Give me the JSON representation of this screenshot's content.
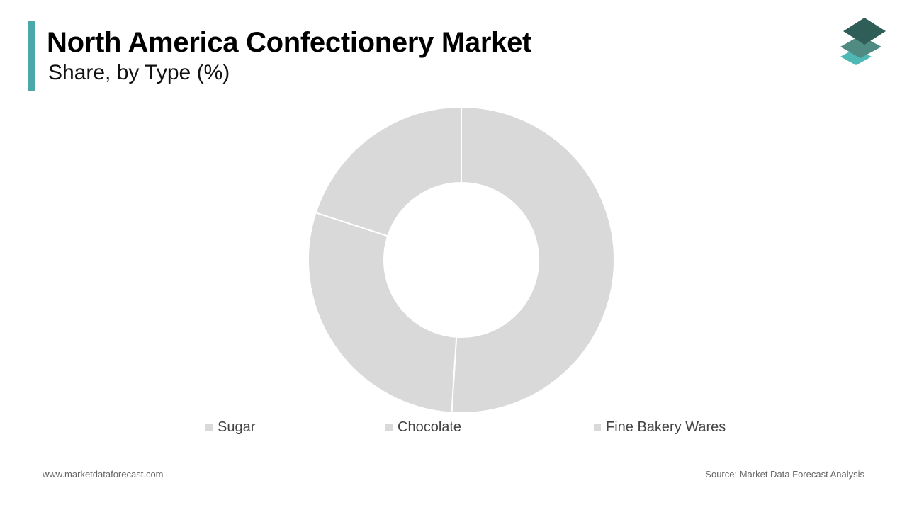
{
  "header": {
    "title": "North America Confectionery Market",
    "subtitle": "Share, by Type (%)"
  },
  "colors": {
    "accent": "#4aa8a8",
    "slice": "#d9d9d9",
    "separator": "#ffffff",
    "logo_dark": "#2f5d57",
    "logo_mid": "#4f8a83",
    "logo_light": "#4fb8b4"
  },
  "logo": {
    "icon": "stacked-layers-icon"
  },
  "chart_data": {
    "type": "pie",
    "donut": true,
    "categories": [
      "Sugar",
      "Chocolate",
      "Fine Bakery Wares"
    ],
    "values": [
      51,
      29,
      20
    ],
    "legend_position": "bottom"
  },
  "legend": [
    {
      "label": "Sugar",
      "color": "#d9d9d9"
    },
    {
      "label": "Chocolate",
      "color": "#d9d9d9"
    },
    {
      "label": "Fine Bakery Wares",
      "color": "#d9d9d9"
    }
  ],
  "footer": {
    "website": "www.marketdataforecast.com",
    "source": "Source: Market Data Forecast Analysis"
  }
}
